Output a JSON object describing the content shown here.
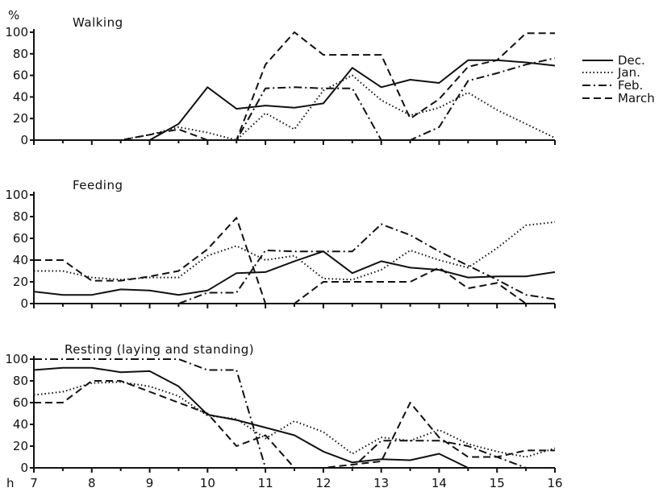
{
  "y_unit": "%",
  "x_unit": "h",
  "chart_data": [
    {
      "type": "line",
      "title": "Walking",
      "xlim": [
        7,
        16
      ],
      "ylim": [
        0,
        100
      ],
      "x_ticks": [
        7,
        8,
        9,
        10,
        11,
        12,
        13,
        14,
        15,
        16
      ],
      "y_ticks": [
        0,
        20,
        40,
        60,
        80,
        100
      ],
      "series": [
        {
          "name": "Dec.",
          "dash": "solid",
          "x": [
            7,
            9,
            9.5,
            10,
            10.5,
            11,
            11.5,
            12,
            12.5,
            13,
            13.5,
            14,
            14.5,
            15,
            15.5,
            16
          ],
          "y": [
            0,
            0,
            15,
            49,
            29,
            32,
            30,
            34,
            67,
            49,
            56,
            53,
            74,
            74,
            72,
            69
          ]
        },
        {
          "name": "Jan.",
          "dash": "dotted",
          "x": [
            7,
            8.5,
            9,
            9.5,
            10,
            10.5,
            11,
            11.5,
            12,
            12.5,
            13,
            13.5,
            14,
            14.5,
            15,
            15.5,
            16
          ],
          "y": [
            0,
            0,
            5,
            12,
            7,
            0,
            25,
            10,
            46,
            60,
            37,
            23,
            30,
            44,
            28,
            15,
            2
          ]
        },
        {
          "name": "Feb.",
          "dash": "dashdot",
          "x": [
            7,
            10.5,
            11,
            11.5,
            12,
            12.5,
            13,
            13.5,
            14,
            14.5,
            15,
            15.5,
            16
          ],
          "y": [
            0,
            0,
            48,
            49,
            48,
            48,
            0,
            0,
            12,
            55,
            62,
            70,
            76
          ]
        },
        {
          "name": "March",
          "dash": "dashed",
          "x": [
            7,
            8.5,
            9,
            9.5,
            10,
            10.5,
            11,
            11.5,
            12,
            12.5,
            13,
            13.5,
            14,
            14.5,
            15,
            15.5,
            16
          ],
          "y": [
            0,
            0,
            5,
            10,
            0,
            0,
            70,
            100,
            79,
            79,
            79,
            20,
            38,
            68,
            74,
            99,
            99
          ]
        }
      ]
    },
    {
      "type": "line",
      "title": "Feeding",
      "xlim": [
        7,
        16
      ],
      "ylim": [
        0,
        100
      ],
      "x_ticks": [
        7,
        8,
        9,
        10,
        11,
        12,
        13,
        14,
        15,
        16
      ],
      "y_ticks": [
        0,
        20,
        40,
        60,
        80,
        100
      ],
      "series": [
        {
          "name": "Dec.",
          "dash": "solid",
          "x": [
            7,
            7.5,
            8,
            8.5,
            9,
            9.5,
            10,
            10.5,
            11,
            11.5,
            12,
            12.5,
            13,
            13.5,
            14,
            14.5,
            15,
            15.5,
            16
          ],
          "y": [
            11,
            8,
            8,
            13,
            12,
            8,
            12,
            28,
            29,
            39,
            48,
            28,
            39,
            33,
            31,
            24,
            25,
            25,
            29
          ]
        },
        {
          "name": "Jan.",
          "dash": "dotted",
          "x": [
            7,
            7.5,
            8,
            8.5,
            9,
            9.5,
            10,
            10.5,
            11,
            11.5,
            12,
            12.5,
            13,
            13.5,
            14,
            14.5,
            15,
            15.5,
            16
          ],
          "y": [
            30,
            30,
            24,
            22,
            24,
            24,
            44,
            53,
            40,
            44,
            23,
            22,
            31,
            49,
            40,
            33,
            51,
            72,
            75
          ]
        },
        {
          "name": "Feb.",
          "dash": "dashdot",
          "x": [
            7,
            9.5,
            10,
            10.5,
            11,
            11.5,
            12,
            12.5,
            13,
            13.5,
            14,
            14.5,
            15,
            15.5,
            16
          ],
          "y": [
            0,
            0,
            10,
            10,
            49,
            48,
            48,
            48,
            73,
            63,
            48,
            35,
            22,
            8,
            4
          ]
        },
        {
          "name": "March",
          "dash": "dashed",
          "x": [
            7,
            7.5,
            8,
            8.5,
            9,
            9.5,
            10,
            10.5,
            11,
            11.5,
            12,
            12.5,
            13,
            13.5,
            14,
            14.5,
            15,
            15.5,
            16
          ],
          "y": [
            40,
            40,
            21,
            21,
            25,
            30,
            50,
            79,
            0,
            0,
            20,
            20,
            20,
            20,
            33,
            14,
            19,
            0,
            0
          ]
        }
      ]
    },
    {
      "type": "line",
      "title": "Resting (laying and standing)",
      "xlim": [
        7,
        16
      ],
      "ylim": [
        0,
        100
      ],
      "x_ticks": [
        7,
        8,
        9,
        10,
        11,
        12,
        13,
        14,
        15,
        16
      ],
      "y_ticks": [
        0,
        20,
        40,
        60,
        80,
        100
      ],
      "series": [
        {
          "name": "Dec.",
          "dash": "solid",
          "x": [
            7,
            7.5,
            8,
            8.5,
            9,
            9.5,
            10,
            10.5,
            11,
            11.5,
            12,
            12.5,
            13,
            13.5,
            14,
            14.5,
            15,
            16
          ],
          "y": [
            90,
            92,
            92,
            88,
            89,
            75,
            49,
            44,
            37,
            30,
            15,
            5,
            8,
            7,
            13,
            0,
            0,
            0
          ]
        },
        {
          "name": "Jan.",
          "dash": "dotted",
          "x": [
            7,
            7.5,
            8,
            8.5,
            9,
            9.5,
            10,
            10.5,
            11,
            11.5,
            12,
            12.5,
            13,
            13.5,
            14,
            14.5,
            15,
            15.5,
            16
          ],
          "y": [
            67,
            70,
            78,
            79,
            75,
            66,
            48,
            45,
            27,
            43,
            33,
            13,
            28,
            25,
            35,
            22,
            15,
            10,
            18
          ]
        },
        {
          "name": "Feb.",
          "dash": "dashdot",
          "x": [
            7,
            9.5,
            10,
            10.5,
            11,
            11.5,
            12,
            12.5,
            13,
            13.5,
            14,
            14.5,
            15,
            15.5,
            16
          ],
          "y": [
            100,
            100,
            90,
            90,
            0,
            0,
            0,
            0,
            25,
            25,
            25,
            20,
            10,
            0,
            0
          ]
        },
        {
          "name": "March",
          "dash": "dashed",
          "x": [
            7,
            7.5,
            8,
            8.5,
            9,
            9.5,
            10,
            10.5,
            11,
            11.5,
            12,
            12.5,
            13,
            13.5,
            14,
            14.5,
            15,
            15.5,
            16
          ],
          "y": [
            60,
            60,
            80,
            80,
            70,
            60,
            50,
            20,
            30,
            0,
            0,
            3,
            6,
            60,
            28,
            10,
            10,
            16,
            16
          ]
        }
      ]
    }
  ]
}
